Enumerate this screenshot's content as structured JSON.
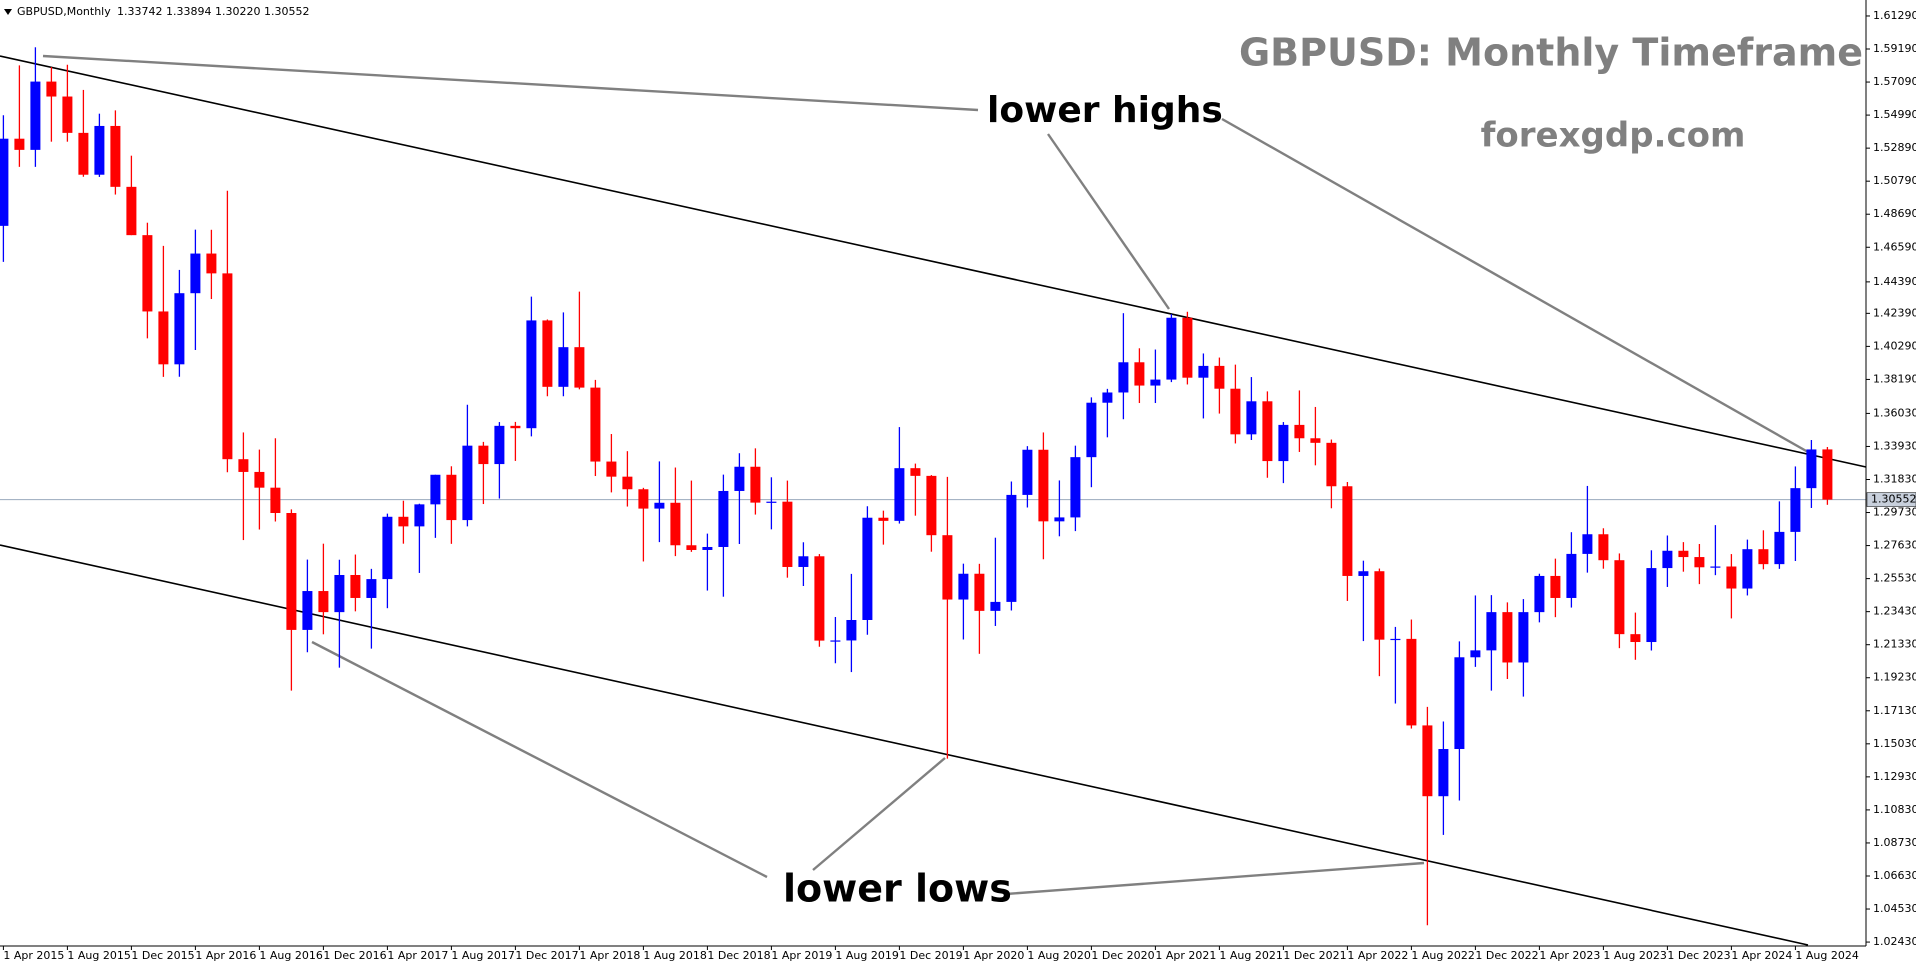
{
  "chart_data": {
    "type": "candlestick",
    "title": "GBPUSD: Monthly Timeframe",
    "subtitle": "forexgdp.com",
    "symbol": "GBPUSD,Monthly",
    "quote": "1.33742 1.33894 1.30220 1.30552",
    "annotations": [
      "lower highs",
      "lower lows"
    ],
    "up_color": "#0000ff",
    "down_color": "#ff0000",
    "last_price": 1.30552,
    "last_price_color": "#9aa9bd",
    "ylim": [
      1.0218,
      1.6207
    ],
    "yticks": [
      {
        "value": 1.6129,
        "label": "1.61290"
      },
      {
        "value": 1.5919,
        "label": "1.59190"
      },
      {
        "value": 1.5709,
        "label": "1.57090"
      },
      {
        "value": 1.5499,
        "label": "1.54990"
      },
      {
        "value": 1.5289,
        "label": "1.52890"
      },
      {
        "value": 1.5079,
        "label": "1.50790"
      },
      {
        "value": 1.4869,
        "label": "1.48690"
      },
      {
        "value": 1.4659,
        "label": "1.46590"
      },
      {
        "value": 1.4439,
        "label": "1.44390"
      },
      {
        "value": 1.4239,
        "label": "1.42390"
      },
      {
        "value": 1.4029,
        "label": "1.40290"
      },
      {
        "value": 1.3819,
        "label": "1.38190"
      },
      {
        "value": 1.3603,
        "label": "1.36030"
      },
      {
        "value": 1.3393,
        "label": "1.33930"
      },
      {
        "value": 1.3183,
        "label": "1.31830"
      },
      {
        "value": 1.2973,
        "label": "1.29730"
      },
      {
        "value": 1.2763,
        "label": "1.27630"
      },
      {
        "value": 1.2553,
        "label": "1.25530"
      },
      {
        "value": 1.2343,
        "label": "1.23430"
      },
      {
        "value": 1.2133,
        "label": "1.21330"
      },
      {
        "value": 1.1923,
        "label": "1.19230"
      },
      {
        "value": 1.1713,
        "label": "1.17130"
      },
      {
        "value": 1.1503,
        "label": "1.15030"
      },
      {
        "value": 1.1293,
        "label": "1.12930"
      },
      {
        "value": 1.1083,
        "label": "1.10830"
      },
      {
        "value": 1.0873,
        "label": "1.08730"
      },
      {
        "value": 1.0663,
        "label": "1.06630"
      },
      {
        "value": 1.0453,
        "label": "1.04530"
      },
      {
        "value": 1.0243,
        "label": "1.02430"
      }
    ],
    "categories": [
      "1 Apr 2015",
      null,
      null,
      null,
      "1 Aug 2015",
      null,
      null,
      null,
      "1 Dec 2015",
      null,
      null,
      null,
      "1 Apr 2016",
      null,
      null,
      null,
      "1 Aug 2016",
      null,
      null,
      null,
      "1 Dec 2016",
      null,
      null,
      null,
      "1 Apr 2017",
      null,
      null,
      null,
      "1 Aug 2017",
      null,
      null,
      null,
      "1 Dec 2017",
      null,
      null,
      null,
      "1 Apr 2018",
      null,
      null,
      null,
      "1 Aug 2018",
      null,
      null,
      null,
      "1 Dec 2018",
      null,
      null,
      null,
      "1 Apr 2019",
      null,
      null,
      null,
      "1 Aug 2019",
      null,
      null,
      null,
      "1 Dec 2019",
      null,
      null,
      null,
      "1 Apr 2020",
      null,
      null,
      null,
      "1 Aug 2020",
      null,
      null,
      null,
      "1 Dec 2020",
      null,
      null,
      null,
      "1 Apr 2021",
      null,
      null,
      null,
      "1 Aug 2021",
      null,
      null,
      null,
      "1 Dec 2021",
      null,
      null,
      null,
      "1 Apr 2022",
      null,
      null,
      null,
      "1 Aug 2022",
      null,
      null,
      null,
      "1 Dec 2022",
      null,
      null,
      null,
      "1 Apr 2023",
      null,
      null,
      null,
      "1 Aug 2023",
      null,
      null,
      null,
      "1 Dec 2023",
      null,
      null,
      null,
      "1 Apr 2024",
      null,
      null,
      null,
      "1 Aug 2024",
      null,
      null
    ],
    "open": [
      1.4795,
      1.5349,
      1.5278,
      1.5712,
      1.5617,
      1.5386,
      1.512,
      1.543,
      1.5043,
      1.4736,
      1.4251,
      1.3915,
      1.4367,
      1.4619,
      1.4493,
      1.3312,
      1.3231,
      1.3131,
      1.297,
      1.2227,
      1.2474,
      1.234,
      1.2576,
      1.243,
      1.255,
      1.2946,
      1.2885,
      1.3025,
      1.3213,
      1.2925,
      1.3398,
      1.3281,
      1.3524,
      1.3509,
      1.4194,
      1.3772,
      1.4024,
      1.3767,
      1.3297,
      1.3201,
      1.3121,
      1.2998,
      1.3035,
      1.2765,
      1.2735,
      1.2754,
      1.311,
      1.3264,
      1.3036,
      1.3042,
      1.2627,
      1.2695,
      1.2159,
      1.216,
      1.229,
      1.294,
      1.292,
      1.3255,
      1.3206,
      1.2829,
      1.242,
      1.2584,
      1.2348,
      1.2405,
      1.3085,
      1.3372,
      1.2917,
      1.2942,
      1.3325,
      1.3671,
      1.3736,
      1.3928,
      1.378,
      1.3818,
      1.4211,
      1.383,
      1.3905,
      1.376,
      1.347,
      1.368,
      1.33,
      1.353,
      1.3445,
      1.3416,
      1.314,
      1.257,
      1.26,
      1.2165,
      1.217,
      1.162,
      1.117,
      1.147,
      1.2053,
      1.2097,
      1.234,
      1.202,
      1.234,
      1.257,
      1.243,
      1.271,
      1.2835,
      1.267,
      1.22,
      1.215,
      1.262,
      1.273,
      1.269,
      1.2625,
      1.263,
      1.249,
      1.274,
      1.2645,
      1.285,
      1.3128,
      1.33742
    ],
    "high": [
      1.5498,
      1.5815,
      1.593,
      1.5804,
      1.5819,
      1.5659,
      1.5508,
      1.5529,
      1.5241,
      1.4815,
      1.4668,
      1.4515,
      1.4771,
      1.477,
      1.5018,
      1.3482,
      1.3373,
      1.3445,
      1.2993,
      1.2674,
      1.2775,
      1.2673,
      1.2706,
      1.2615,
      1.2966,
      1.3048,
      1.3029,
      1.3213,
      1.3267,
      1.3658,
      1.3422,
      1.3548,
      1.3549,
      1.4345,
      1.42,
      1.4245,
      1.4377,
      1.3816,
      1.3472,
      1.3363,
      1.313,
      1.3298,
      1.3259,
      1.3176,
      1.2839,
      1.3214,
      1.335,
      1.3381,
      1.3197,
      1.3176,
      1.2784,
      1.2709,
      1.2309,
      1.2583,
      1.3013,
      1.2985,
      1.3516,
      1.3284,
      1.3211,
      1.32,
      1.2648,
      1.2647,
      1.2813,
      1.317,
      1.3395,
      1.3482,
      1.3177,
      1.3398,
      1.3705,
      1.3759,
      1.424,
      1.4017,
      1.4009,
      1.4234,
      1.4249,
      1.3984,
      1.3958,
      1.3913,
      1.3834,
      1.3743,
      1.3548,
      1.3749,
      1.3644,
      1.3437,
      1.3167,
      1.2667,
      1.2617,
      1.2246,
      1.2293,
      1.1738,
      1.1645,
      1.2154,
      1.2446,
      1.2448,
      1.2402,
      1.2423,
      1.2584,
      1.268,
      1.2848,
      1.3142,
      1.2873,
      1.2713,
      1.2337,
      1.2733,
      1.2827,
      1.2785,
      1.2773,
      1.2893,
      1.2709,
      1.2801,
      1.286,
      1.3044,
      1.3266,
      1.3434,
      1.33894
    ],
    "low": [
      1.4566,
      1.517,
      1.517,
      1.533,
      1.533,
      1.5107,
      1.5106,
      1.4994,
      1.4736,
      1.408,
      1.3835,
      1.3836,
      1.4006,
      1.433,
      1.3229,
      1.2798,
      1.2865,
      1.2916,
      1.1841,
      1.2085,
      1.2199,
      1.1987,
      1.2345,
      1.2108,
      1.2365,
      1.2775,
      1.2589,
      1.2812,
      1.2774,
      1.2885,
      1.3027,
      1.3062,
      1.3301,
      1.3457,
      1.3712,
      1.3712,
      1.3756,
      1.3205,
      1.3101,
      1.3011,
      1.2662,
      1.2785,
      1.2696,
      1.2723,
      1.2477,
      1.2438,
      1.2773,
      1.296,
      1.2866,
      1.2559,
      1.2506,
      1.212,
      1.2015,
      1.1959,
      1.2196,
      1.2769,
      1.2903,
      1.2953,
      1.2724,
      1.1409,
      1.2166,
      1.2075,
      1.2252,
      1.235,
      1.3005,
      1.2676,
      1.2822,
      1.2855,
      1.3134,
      1.3451,
      1.3566,
      1.3669,
      1.3669,
      1.3802,
      1.3787,
      1.3571,
      1.3602,
      1.3412,
      1.3434,
      1.3194,
      1.316,
      1.3358,
      1.3273,
      1.3,
      1.2411,
      1.2156,
      1.1933,
      1.1759,
      1.16,
      1.035,
      1.0924,
      1.1143,
      1.1992,
      1.1841,
      1.1915,
      1.1803,
      1.2275,
      1.2308,
      1.2369,
      1.2591,
      1.2616,
      1.2111,
      1.2037,
      1.2096,
      1.25,
      1.2597,
      1.2518,
      1.2575,
      1.23,
      1.2446,
      1.2612,
      1.2615,
      1.2665,
      1.3002,
      1.3022
    ],
    "close": [
      1.5349,
      1.5278,
      1.5712,
      1.5617,
      1.5386,
      1.512,
      1.543,
      1.5043,
      1.4736,
      1.4251,
      1.3915,
      1.4367,
      1.4619,
      1.4493,
      1.3312,
      1.3231,
      1.3131,
      1.297,
      1.2227,
      1.2474,
      1.234,
      1.2576,
      1.243,
      1.255,
      1.2946,
      1.2885,
      1.3025,
      1.3213,
      1.2925,
      1.3398,
      1.3281,
      1.3524,
      1.3509,
      1.4194,
      1.3772,
      1.4024,
      1.3767,
      1.3297,
      1.3201,
      1.3121,
      1.2998,
      1.3035,
      1.2765,
      1.2735,
      1.2754,
      1.311,
      1.3264,
      1.3036,
      1.3042,
      1.2627,
      1.2695,
      1.2159,
      1.216,
      1.229,
      1.294,
      1.292,
      1.3255,
      1.3206,
      1.2829,
      1.242,
      1.2584,
      1.2348,
      1.2405,
      1.3085,
      1.3372,
      1.2917,
      1.2942,
      1.3325,
      1.3671,
      1.3736,
      1.3928,
      1.378,
      1.3818,
      1.4211,
      1.383,
      1.3905,
      1.376,
      1.347,
      1.368,
      1.33,
      1.353,
      1.3445,
      1.3416,
      1.314,
      1.257,
      1.26,
      1.2165,
      1.217,
      1.162,
      1.117,
      1.147,
      1.2053,
      1.2097,
      1.234,
      1.202,
      1.234,
      1.257,
      1.243,
      1.271,
      1.2835,
      1.267,
      1.22,
      1.215,
      1.262,
      1.273,
      1.269,
      1.2625,
      1.263,
      1.249,
      1.274,
      1.2645,
      1.285,
      1.3128,
      1.3374,
      1.30552
    ]
  }
}
